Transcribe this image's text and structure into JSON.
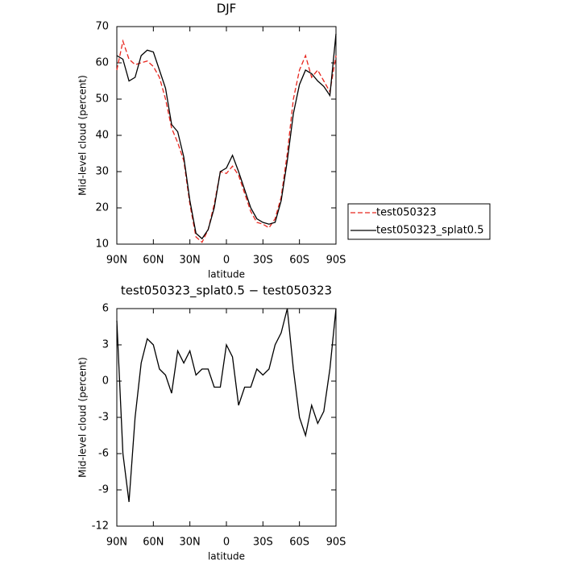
{
  "chart_data": [
    {
      "type": "line",
      "title": "DJF",
      "xlabel": "latitude",
      "ylabel": "Mid-level cloud (percent)",
      "x": [
        90,
        85,
        80,
        75,
        70,
        65,
        60,
        55,
        50,
        45,
        40,
        35,
        30,
        25,
        20,
        15,
        10,
        5,
        0,
        -5,
        -10,
        -15,
        -20,
        -25,
        -30,
        -35,
        -40,
        -45,
        -50,
        -55,
        -60,
        -65,
        -70,
        -75,
        -80,
        -85,
        -90
      ],
      "series": [
        {
          "name": "test050323",
          "color": "#e8261e",
          "style": "dashed",
          "values": [
            58,
            66,
            61,
            59.5,
            60,
            60.5,
            59,
            56,
            50,
            42,
            38,
            33,
            21,
            12,
            10.5,
            14,
            21,
            30,
            29.5,
            31.5,
            29,
            24,
            19,
            16,
            15.5,
            14.5,
            17,
            23,
            35,
            50,
            58,
            62,
            56,
            58,
            55,
            52,
            62
          ]
        },
        {
          "name": "test050323_splat0.5",
          "color": "#000000",
          "style": "solid",
          "values": [
            62,
            61,
            55,
            56,
            62,
            63.5,
            63,
            58,
            53,
            43,
            41,
            34,
            22,
            13,
            11.5,
            14,
            20,
            30,
            31,
            34.5,
            30,
            25,
            20,
            17,
            16,
            15.5,
            16,
            22,
            33,
            46,
            54,
            58,
            57,
            55,
            53.5,
            51,
            68
          ]
        }
      ],
      "xlim": [
        90,
        -90
      ],
      "ylim": [
        10,
        70
      ],
      "xticks": [
        {
          "value": 90,
          "label": "90N"
        },
        {
          "value": 60,
          "label": "60N"
        },
        {
          "value": 30,
          "label": "30N"
        },
        0,
        {
          "value": -30,
          "label": "30S"
        },
        {
          "value": -60,
          "label": "60S"
        },
        {
          "value": -90,
          "label": "90S"
        }
      ],
      "yticks": [
        10,
        20,
        30,
        40,
        50,
        60,
        70
      ],
      "legend": "right"
    },
    {
      "type": "line",
      "title": "test050323_splat0.5 − test050323",
      "xlabel": "latitude",
      "ylabel": "Mid-level cloud (percent)",
      "x": [
        90,
        85,
        80,
        75,
        70,
        65,
        60,
        55,
        50,
        45,
        40,
        35,
        30,
        25,
        20,
        15,
        10,
        5,
        0,
        -5,
        -10,
        -15,
        -20,
        -25,
        -30,
        -35,
        -40,
        -45,
        -50,
        -55,
        -60,
        -65,
        -70,
        -75,
        -80,
        -85,
        -90
      ],
      "series": [
        {
          "color": "#000000",
          "style": "solid",
          "values": [
            5,
            -6,
            -10,
            -3,
            1.5,
            3.5,
            3,
            1,
            0.5,
            -1,
            2.5,
            1.5,
            2.5,
            0.5,
            1,
            1,
            -0.5,
            -0.5,
            3,
            2,
            -2,
            -0.5,
            -0.5,
            1,
            0.5,
            1,
            3,
            4,
            6,
            1,
            -3,
            -4.5,
            -2,
            -3.5,
            -2.5,
            1,
            6
          ]
        }
      ],
      "xlim": [
        90,
        -90
      ],
      "ylim": [
        -12,
        6
      ],
      "xticks": [
        {
          "value": 90,
          "label": "90N"
        },
        {
          "value": 60,
          "label": "60N"
        },
        {
          "value": 30,
          "label": "30N"
        },
        0,
        {
          "value": -30,
          "label": "30S"
        },
        {
          "value": -60,
          "label": "60S"
        },
        {
          "value": -90,
          "label": "90S"
        }
      ],
      "yticks": [
        -12,
        -9,
        -6,
        -3,
        0,
        3,
        6
      ]
    }
  ]
}
